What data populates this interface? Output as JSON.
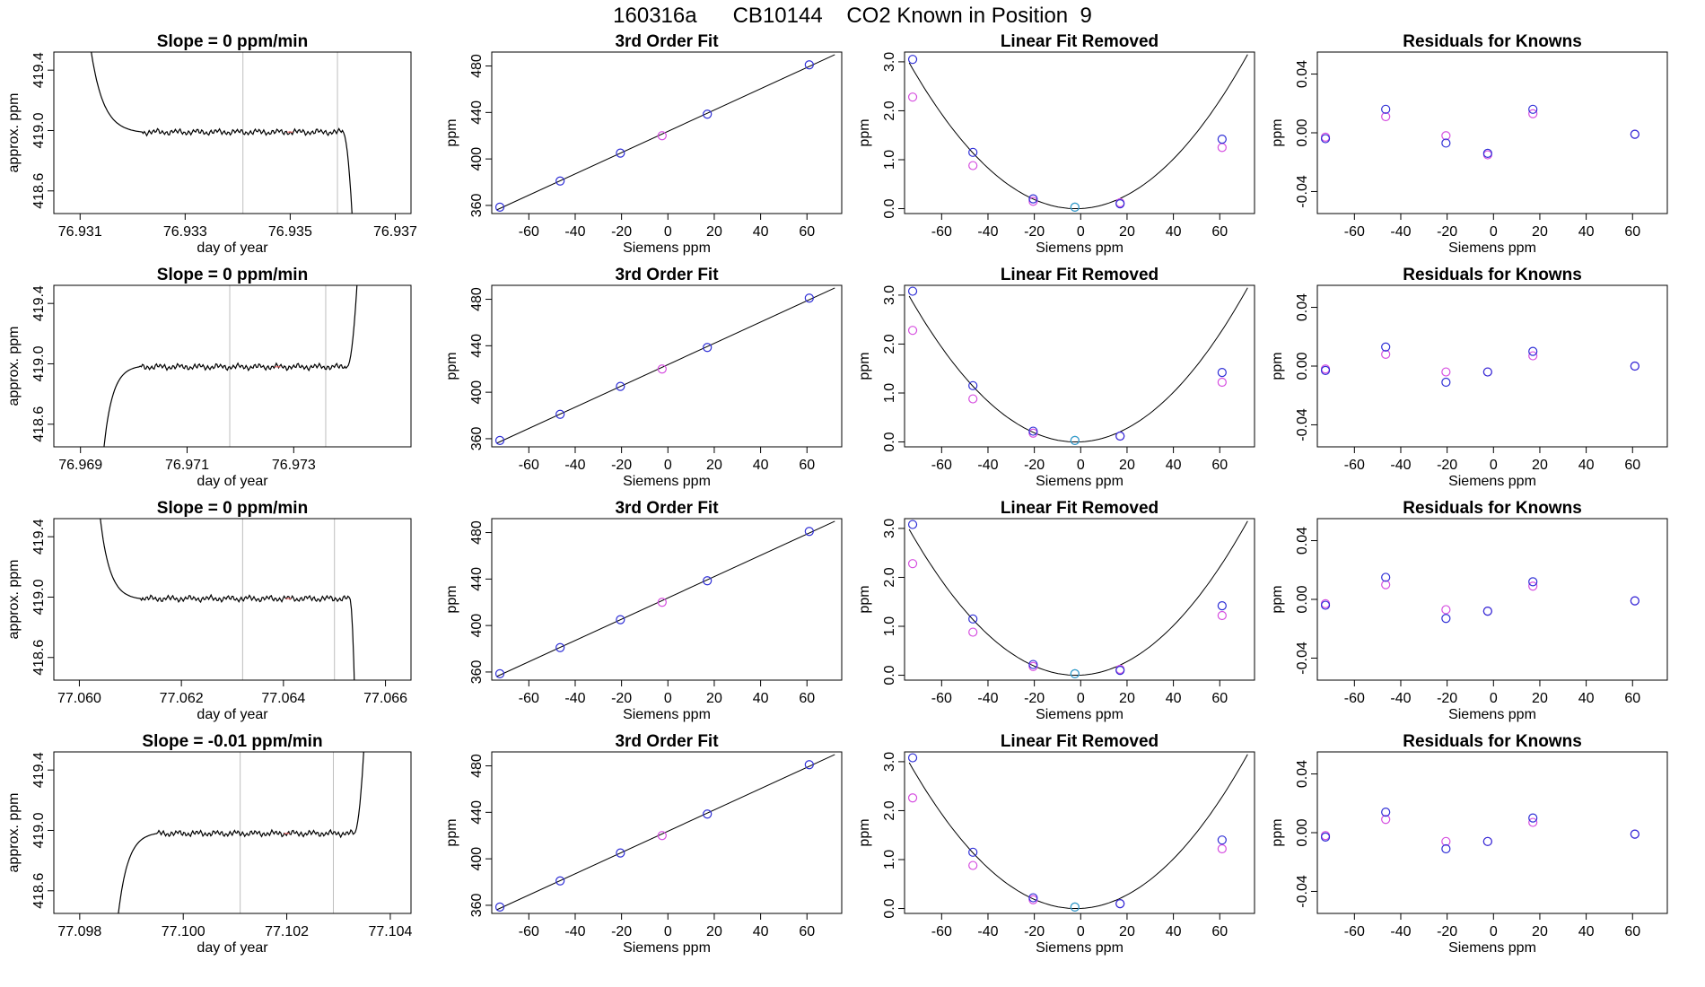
{
  "title": "160316a      CB10144    CO2 Known in Position  9",
  "colors": {
    "trace": "#000000",
    "vline": "#bebebe",
    "blue": "#2f2fd6",
    "magenta": "#d64fe0",
    "cyan": "#2aa6c8",
    "red": "#ff6666"
  },
  "chart_data": [
    {
      "type": "line",
      "panel": "time-series",
      "title": "Slope =  0  ppm/min",
      "xlabel": "day of year",
      "ylabel": "approx. ppm",
      "xlim": [
        76.9305,
        76.9373
      ],
      "ylim": [
        418.45,
        419.52
      ],
      "xticks": [
        76.931,
        76.933,
        76.935,
        76.937
      ],
      "xtick_labels": [
        "76.931",
        "76.933",
        "76.935",
        "76.937"
      ],
      "yticks": [
        418.6,
        419.0,
        419.4
      ],
      "ytick_labels": [
        "418.6",
        "419.0",
        "419.4"
      ],
      "vlines": [
        76.9341,
        76.9359
      ],
      "trace": {
        "x0": 76.9312,
        "x_plateau_start": 76.9322,
        "x_end": 76.936,
        "x_drop_end": 76.9362,
        "start": 419.55,
        "plateau": 418.99,
        "end": 418.3,
        "rise": false
      }
    },
    {
      "type": "line",
      "panel": "fit",
      "title": "3rd Order Fit",
      "xlabel": "Siemens ppm",
      "ylabel": "ppm",
      "xlim": [
        -76,
        75
      ],
      "ylim": [
        353,
        492
      ],
      "xticks": [
        -60,
        -40,
        -20,
        0,
        20,
        40,
        60
      ],
      "xtick_labels": [
        "-60",
        "-40",
        "-20",
        "0",
        "20",
        "40",
        "60"
      ],
      "yticks": [
        360,
        400,
        440,
        480
      ],
      "ytick_labels": [
        "360",
        "400",
        "440",
        "480"
      ],
      "points": {
        "x": [
          -72.5,
          -46.5,
          -20.5,
          -2.5,
          17,
          61
        ],
        "y": [
          358.5,
          381,
          405,
          420,
          438.5,
          481
        ]
      },
      "point_colors": [
        "blue",
        "blue",
        "blue",
        "magenta",
        "blue",
        "blue"
      ]
    },
    {
      "type": "scatter",
      "panel": "linear-removed",
      "title": "Linear Fit Removed",
      "xlabel": "Siemens ppm",
      "ylabel": "ppm",
      "xlim": [
        -76,
        75
      ],
      "ylim": [
        -0.1,
        3.2
      ],
      "xticks": [
        -60,
        -40,
        -20,
        0,
        20,
        40,
        60
      ],
      "xtick_labels": [
        "-60",
        "-40",
        "-20",
        "0",
        "20",
        "40",
        "60"
      ],
      "yticks": [
        0,
        1,
        2,
        3
      ],
      "ytick_labels": [
        "0.0",
        "1.0",
        "2.0",
        "3.0"
      ],
      "points": {
        "x": [
          -72.5,
          -46.5,
          -20.5,
          -2.5,
          17,
          61
        ],
        "y_blue": [
          3.05,
          1.15,
          0.2,
          0.03,
          0.1,
          1.42
        ],
        "y_magenta": [
          2.28,
          0.88,
          0.15,
          0.03,
          0.12,
          1.25
        ]
      }
    },
    {
      "type": "scatter",
      "panel": "residuals",
      "title": "Residuals for Knowns",
      "xlabel": "Siemens ppm",
      "ylabel": "ppm",
      "xlim": [
        -76,
        75
      ],
      "ylim": [
        -0.055,
        0.055
      ],
      "xticks": [
        -60,
        -40,
        -20,
        0,
        20,
        40,
        60
      ],
      "xtick_labels": [
        "-60",
        "-40",
        "-20",
        "0",
        "20",
        "40",
        "60"
      ],
      "yticks": [
        -0.04,
        0.0,
        0.04
      ],
      "ytick_labels": [
        "-0.04",
        "0.00",
        "0.04"
      ],
      "points": {
        "x": [
          -72.5,
          -46.5,
          -20.5,
          -2.5,
          17,
          61
        ],
        "y_blue": [
          -0.004,
          0.016,
          -0.007,
          -0.014,
          0.016,
          -0.001
        ],
        "y_magenta": [
          -0.003,
          0.011,
          -0.002,
          -0.015,
          0.013,
          -0.001
        ]
      }
    },
    {
      "type": "line",
      "panel": "time-series",
      "title": "Slope =  0  ppm/min",
      "xlabel": "day of year",
      "ylabel": "approx. ppm",
      "xlim": [
        76.9685,
        76.9752
      ],
      "ylim": [
        418.45,
        419.52
      ],
      "xticks": [
        76.969,
        76.971,
        76.973
      ],
      "xtick_labels": [
        "76.969",
        "76.971",
        "76.973"
      ],
      "yticks": [
        418.6,
        419.0,
        419.4
      ],
      "ytick_labels": [
        "418.6",
        "419.0",
        "419.4"
      ],
      "vlines": [
        76.9718,
        76.9736
      ],
      "trace": {
        "x0": 76.9694,
        "x_plateau_start": 76.9701,
        "x_end": 76.974,
        "x_drop_end": 76.9742,
        "start": 418.3,
        "plateau": 418.98,
        "end": 419.6,
        "rise": true
      }
    },
    {
      "type": "line",
      "panel": "fit",
      "title": "3rd Order Fit",
      "xlabel": "Siemens ppm",
      "ylabel": "ppm",
      "xlim": [
        -76,
        75
      ],
      "ylim": [
        353,
        492
      ],
      "xticks": [
        -60,
        -40,
        -20,
        0,
        20,
        40,
        60
      ],
      "xtick_labels": [
        "-60",
        "-40",
        "-20",
        "0",
        "20",
        "40",
        "60"
      ],
      "yticks": [
        360,
        400,
        440,
        480
      ],
      "ytick_labels": [
        "360",
        "400",
        "440",
        "480"
      ],
      "points": {
        "x": [
          -72.5,
          -46.5,
          -20.5,
          -2.5,
          17,
          61
        ],
        "y": [
          358.5,
          381,
          405,
          420,
          438.5,
          481
        ]
      },
      "point_colors": [
        "blue",
        "blue",
        "blue",
        "magenta",
        "blue",
        "blue"
      ]
    },
    {
      "type": "scatter",
      "panel": "linear-removed",
      "title": "Linear Fit Removed",
      "xlabel": "Siemens ppm",
      "ylabel": "ppm",
      "xlim": [
        -76,
        75
      ],
      "ylim": [
        -0.1,
        3.2
      ],
      "xticks": [
        -60,
        -40,
        -20,
        0,
        20,
        40,
        60
      ],
      "xtick_labels": [
        "-60",
        "-40",
        "-20",
        "0",
        "20",
        "40",
        "60"
      ],
      "yticks": [
        0,
        1,
        2,
        3
      ],
      "ytick_labels": [
        "0.0",
        "1.0",
        "2.0",
        "3.0"
      ],
      "points": {
        "x": [
          -72.5,
          -46.5,
          -20.5,
          -2.5,
          17,
          61
        ],
        "y_blue": [
          3.08,
          1.15,
          0.22,
          0.03,
          0.12,
          1.42
        ],
        "y_magenta": [
          2.28,
          0.88,
          0.18,
          0.03,
          0.12,
          1.22
        ]
      }
    },
    {
      "type": "scatter",
      "panel": "residuals",
      "title": "Residuals for Knowns",
      "xlabel": "Siemens ppm",
      "ylabel": "ppm",
      "xlim": [
        -76,
        75
      ],
      "ylim": [
        -0.055,
        0.055
      ],
      "xticks": [
        -60,
        -40,
        -20,
        0,
        20,
        40,
        60
      ],
      "xtick_labels": [
        "-60",
        "-40",
        "-20",
        "0",
        "20",
        "40",
        "60"
      ],
      "yticks": [
        -0.04,
        0.0,
        0.04
      ],
      "ytick_labels": [
        "-0.04",
        "0.00",
        "0.04"
      ],
      "points": {
        "x": [
          -72.5,
          -46.5,
          -20.5,
          -2.5,
          17,
          61
        ],
        "y_blue": [
          -0.003,
          0.013,
          -0.011,
          -0.004,
          0.01,
          0.0
        ],
        "y_magenta": [
          -0.002,
          0.008,
          -0.004,
          -0.004,
          0.007,
          0.0
        ]
      }
    },
    {
      "type": "line",
      "panel": "time-series",
      "title": "Slope =  0  ppm/min",
      "xlabel": "day of year",
      "ylabel": "approx. ppm",
      "xlim": [
        77.0595,
        77.0665
      ],
      "ylim": [
        418.45,
        419.52
      ],
      "xticks": [
        77.06,
        77.062,
        77.064,
        77.066
      ],
      "xtick_labels": [
        "77.060",
        "77.062",
        "77.064",
        "77.066"
      ],
      "yticks": [
        418.6,
        419.0,
        419.4
      ],
      "ytick_labels": [
        "418.6",
        "419.0",
        "419.4"
      ],
      "vlines": [
        77.0632,
        77.065
      ],
      "trace": {
        "x0": 77.0604,
        "x_plateau_start": 77.0612,
        "x_end": 77.0653,
        "x_drop_end": 77.0654,
        "start": 419.55,
        "plateau": 418.99,
        "end": 418.3,
        "rise": false
      }
    },
    {
      "type": "line",
      "panel": "fit",
      "title": "3rd Order Fit",
      "xlabel": "Siemens ppm",
      "ylabel": "ppm",
      "xlim": [
        -76,
        75
      ],
      "ylim": [
        353,
        492
      ],
      "xticks": [
        -60,
        -40,
        -20,
        0,
        20,
        40,
        60
      ],
      "xtick_labels": [
        "-60",
        "-40",
        "-20",
        "0",
        "20",
        "40",
        "60"
      ],
      "yticks": [
        360,
        400,
        440,
        480
      ],
      "ytick_labels": [
        "360",
        "400",
        "440",
        "480"
      ],
      "points": {
        "x": [
          -72.5,
          -46.5,
          -20.5,
          -2.5,
          17,
          61
        ],
        "y": [
          358.5,
          381,
          405,
          420,
          438.5,
          481
        ]
      },
      "point_colors": [
        "blue",
        "blue",
        "blue",
        "magenta",
        "blue",
        "blue"
      ]
    },
    {
      "type": "scatter",
      "panel": "linear-removed",
      "title": "Linear Fit Removed",
      "xlabel": "Siemens ppm",
      "ylabel": "ppm",
      "xlim": [
        -76,
        75
      ],
      "ylim": [
        -0.1,
        3.2
      ],
      "xticks": [
        -60,
        -40,
        -20,
        0,
        20,
        40,
        60
      ],
      "xtick_labels": [
        "-60",
        "-40",
        "-20",
        "0",
        "20",
        "40",
        "60"
      ],
      "yticks": [
        0,
        1,
        2,
        3
      ],
      "ytick_labels": [
        "0.0",
        "1.0",
        "2.0",
        "3.0"
      ],
      "points": {
        "x": [
          -72.5,
          -46.5,
          -20.5,
          -2.5,
          17,
          61
        ],
        "y_blue": [
          3.08,
          1.15,
          0.22,
          0.03,
          0.1,
          1.42
        ],
        "y_magenta": [
          2.28,
          0.88,
          0.18,
          0.03,
          0.12,
          1.22
        ]
      }
    },
    {
      "type": "scatter",
      "panel": "residuals",
      "title": "Residuals for Knowns",
      "xlabel": "Siemens ppm",
      "ylabel": "ppm",
      "xlim": [
        -76,
        75
      ],
      "ylim": [
        -0.055,
        0.055
      ],
      "xticks": [
        -60,
        -40,
        -20,
        0,
        20,
        40,
        60
      ],
      "xtick_labels": [
        "-60",
        "-40",
        "-20",
        "0",
        "20",
        "40",
        "60"
      ],
      "yticks": [
        -0.04,
        0.0,
        0.04
      ],
      "ytick_labels": [
        "-0.04",
        "0.00",
        "0.04"
      ],
      "points": {
        "x": [
          -72.5,
          -46.5,
          -20.5,
          -2.5,
          17,
          61
        ],
        "y_blue": [
          -0.004,
          0.015,
          -0.013,
          -0.008,
          0.012,
          -0.001
        ],
        "y_magenta": [
          -0.003,
          0.01,
          -0.007,
          -0.008,
          0.009,
          -0.001
        ]
      }
    },
    {
      "type": "line",
      "panel": "time-series",
      "title": "Slope =  -0.01  ppm/min",
      "xlabel": "day of year",
      "ylabel": "approx. ppm",
      "xlim": [
        77.0975,
        77.1044
      ],
      "ylim": [
        418.45,
        419.52
      ],
      "xticks": [
        77.098,
        77.1,
        77.102,
        77.104
      ],
      "xtick_labels": [
        "77.098",
        "77.100",
        "77.102",
        "77.104"
      ],
      "yticks": [
        418.6,
        419.0,
        419.4
      ],
      "ytick_labels": [
        "418.6",
        "419.0",
        "419.4"
      ],
      "vlines": [
        77.1011,
        77.1029
      ],
      "trace": {
        "x0": 77.0987,
        "x_plateau_start": 77.0995,
        "x_end": 77.1033,
        "x_drop_end": 77.1035,
        "start": 418.3,
        "plateau": 418.98,
        "end": 419.6,
        "rise": true
      }
    },
    {
      "type": "line",
      "panel": "fit",
      "title": "3rd Order Fit",
      "xlabel": "Siemens ppm",
      "ylabel": "ppm",
      "xlim": [
        -76,
        75
      ],
      "ylim": [
        353,
        492
      ],
      "xticks": [
        -60,
        -40,
        -20,
        0,
        20,
        40,
        60
      ],
      "xtick_labels": [
        "-60",
        "-40",
        "-20",
        "0",
        "20",
        "40",
        "60"
      ],
      "yticks": [
        360,
        400,
        440,
        480
      ],
      "ytick_labels": [
        "360",
        "400",
        "440",
        "480"
      ],
      "points": {
        "x": [
          -72.5,
          -46.5,
          -20.5,
          -2.5,
          17,
          61
        ],
        "y": [
          358.5,
          381,
          405,
          420,
          438.5,
          481
        ]
      },
      "point_colors": [
        "blue",
        "blue",
        "blue",
        "magenta",
        "blue",
        "blue"
      ]
    },
    {
      "type": "scatter",
      "panel": "linear-removed",
      "title": "Linear Fit Removed",
      "xlabel": "Siemens ppm",
      "ylabel": "ppm",
      "xlim": [
        -76,
        75
      ],
      "ylim": [
        -0.1,
        3.2
      ],
      "xticks": [
        -60,
        -40,
        -20,
        0,
        20,
        40,
        60
      ],
      "xtick_labels": [
        "-60",
        "-40",
        "-20",
        "0",
        "20",
        "40",
        "60"
      ],
      "yticks": [
        0,
        1,
        2,
        3
      ],
      "ytick_labels": [
        "0.0",
        "1.0",
        "2.0",
        "3.0"
      ],
      "points": {
        "x": [
          -72.5,
          -46.5,
          -20.5,
          -2.5,
          17,
          61
        ],
        "y_blue": [
          3.08,
          1.15,
          0.22,
          0.03,
          0.1,
          1.4
        ],
        "y_magenta": [
          2.26,
          0.88,
          0.18,
          0.03,
          0.1,
          1.22
        ]
      }
    },
    {
      "type": "scatter",
      "panel": "residuals",
      "title": "Residuals for Knowns",
      "xlabel": "Siemens ppm",
      "ylabel": "ppm",
      "xlim": [
        -76,
        75
      ],
      "ylim": [
        -0.055,
        0.055
      ],
      "xticks": [
        -60,
        -40,
        -20,
        0,
        20,
        40,
        60
      ],
      "xtick_labels": [
        "-60",
        "-40",
        "-20",
        "0",
        "20",
        "40",
        "60"
      ],
      "yticks": [
        -0.04,
        0.0,
        0.04
      ],
      "ytick_labels": [
        "-0.04",
        "0.00",
        "0.04"
      ],
      "points": {
        "x": [
          -72.5,
          -46.5,
          -20.5,
          -2.5,
          17,
          61
        ],
        "y_blue": [
          -0.003,
          0.014,
          -0.011,
          -0.006,
          0.01,
          -0.001
        ],
        "y_magenta": [
          -0.002,
          0.009,
          -0.006,
          -0.006,
          0.007,
          -0.001
        ]
      }
    }
  ]
}
